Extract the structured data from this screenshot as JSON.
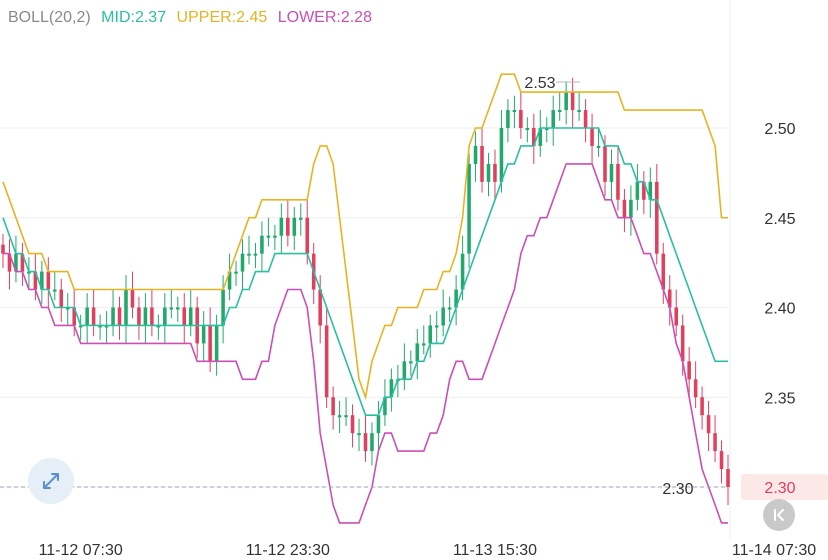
{
  "indicator": {
    "name": "BOLL(20,2)",
    "mid_label": "MID:2.37",
    "upper_label": "UPPER:2.45",
    "lower_label": "LOWER:2.28"
  },
  "colors": {
    "indicator_name": "#8a8a8a",
    "mid": "#2bbfa0",
    "upper": "#e6b422",
    "lower": "#cc4fb4",
    "up_candle": "#22a86b",
    "down_candle": "#e0405e",
    "grid": "#eeeeee",
    "axis_text": "#333333",
    "price_line": "#9aa5b8",
    "price_tag_bg": "#fde8e8",
    "price_tag_text": "#e0405e"
  },
  "icons": {
    "expand": "expand-arrows-icon",
    "back": "chevron-left-to-end-icon"
  },
  "chart_data": {
    "type": "candlestick",
    "title": "",
    "xlabel": "",
    "ylabel": "",
    "ylim": [
      2.28,
      2.52
    ],
    "y_ticks": [
      "2.50",
      "2.45",
      "2.40",
      "2.35",
      "2.30"
    ],
    "x_ticks": [
      {
        "label": "11-12 07:30",
        "index": 12
      },
      {
        "label": "11-12 23:30",
        "index": 44
      },
      {
        "label": "11-13 15:30",
        "index": 76
      },
      {
        "label": "11-14 07:30",
        "index": 108
      }
    ],
    "last_price": "2.30",
    "high_label": "2.53",
    "annotation_price": "2.30",
    "close": [
      2.43,
      2.42,
      2.43,
      2.42,
      2.42,
      2.41,
      2.42,
      2.41,
      2.41,
      2.4,
      2.4,
      2.39,
      2.39,
      2.4,
      2.39,
      2.39,
      2.39,
      2.4,
      2.39,
      2.41,
      2.4,
      2.39,
      2.4,
      2.39,
      2.39,
      2.4,
      2.4,
      2.4,
      2.39,
      2.4,
      2.38,
      2.39,
      2.37,
      2.39,
      2.41,
      2.42,
      2.42,
      2.43,
      2.43,
      2.43,
      2.44,
      2.44,
      2.44,
      2.45,
      2.44,
      2.45,
      2.45,
      2.43,
      2.41,
      2.39,
      2.35,
      2.34,
      2.34,
      2.34,
      2.33,
      2.33,
      2.32,
      2.33,
      2.34,
      2.35,
      2.36,
      2.36,
      2.37,
      2.37,
      2.38,
      2.38,
      2.39,
      2.39,
      2.4,
      2.4,
      2.41,
      2.43,
      2.48,
      2.49,
      2.47,
      2.48,
      2.47,
      2.5,
      2.51,
      2.51,
      2.5,
      2.5,
      2.49,
      2.5,
      2.5,
      2.51,
      2.51,
      2.52,
      2.51,
      2.51,
      2.5,
      2.49,
      2.49,
      2.47,
      2.48,
      2.46,
      2.45,
      2.46,
      2.47,
      2.46,
      2.47,
      2.43,
      2.41,
      2.4,
      2.39,
      2.37,
      2.36,
      2.35,
      2.34,
      2.33,
      2.32,
      2.31,
      2.3
    ],
    "upper": [
      2.47,
      2.46,
      2.45,
      2.44,
      2.43,
      2.43,
      2.43,
      2.42,
      2.42,
      2.42,
      2.42,
      2.41,
      2.41,
      2.41,
      2.41,
      2.41,
      2.41,
      2.41,
      2.41,
      2.41,
      2.41,
      2.41,
      2.41,
      2.41,
      2.41,
      2.41,
      2.41,
      2.41,
      2.41,
      2.41,
      2.41,
      2.41,
      2.41,
      2.41,
      2.41,
      2.42,
      2.43,
      2.44,
      2.45,
      2.45,
      2.46,
      2.46,
      2.46,
      2.46,
      2.46,
      2.46,
      2.46,
      2.46,
      2.48,
      2.49,
      2.49,
      2.48,
      2.45,
      2.42,
      2.39,
      2.36,
      2.35,
      2.37,
      2.38,
      2.39,
      2.39,
      2.4,
      2.4,
      2.4,
      2.4,
      2.41,
      2.41,
      2.41,
      2.42,
      2.42,
      2.43,
      2.45,
      2.49,
      2.5,
      2.5,
      2.51,
      2.52,
      2.53,
      2.53,
      2.53,
      2.52,
      2.52,
      2.52,
      2.52,
      2.52,
      2.52,
      2.52,
      2.52,
      2.52,
      2.52,
      2.52,
      2.52,
      2.52,
      2.52,
      2.52,
      2.52,
      2.51,
      2.51,
      2.51,
      2.51,
      2.51,
      2.51,
      2.51,
      2.51,
      2.51,
      2.51,
      2.51,
      2.51,
      2.51,
      2.5,
      2.49,
      2.45,
      2.45
    ],
    "mid": [
      2.45,
      2.44,
      2.43,
      2.43,
      2.42,
      2.42,
      2.41,
      2.41,
      2.4,
      2.4,
      2.4,
      2.4,
      2.39,
      2.39,
      2.39,
      2.39,
      2.39,
      2.39,
      2.39,
      2.39,
      2.39,
      2.39,
      2.39,
      2.39,
      2.39,
      2.39,
      2.39,
      2.39,
      2.39,
      2.39,
      2.39,
      2.39,
      2.39,
      2.39,
      2.39,
      2.4,
      2.4,
      2.41,
      2.41,
      2.42,
      2.42,
      2.42,
      2.43,
      2.43,
      2.43,
      2.43,
      2.43,
      2.43,
      2.42,
      2.41,
      2.4,
      2.39,
      2.38,
      2.37,
      2.36,
      2.35,
      2.34,
      2.34,
      2.34,
      2.35,
      2.35,
      2.36,
      2.36,
      2.36,
      2.37,
      2.37,
      2.38,
      2.38,
      2.38,
      2.39,
      2.4,
      2.41,
      2.42,
      2.43,
      2.44,
      2.45,
      2.46,
      2.47,
      2.48,
      2.48,
      2.49,
      2.49,
      2.49,
      2.5,
      2.5,
      2.5,
      2.5,
      2.5,
      2.5,
      2.5,
      2.5,
      2.5,
      2.5,
      2.49,
      2.49,
      2.49,
      2.48,
      2.48,
      2.47,
      2.47,
      2.46,
      2.46,
      2.45,
      2.44,
      2.43,
      2.42,
      2.41,
      2.4,
      2.39,
      2.38,
      2.37,
      2.37,
      2.37
    ],
    "lower": [
      2.43,
      2.43,
      2.42,
      2.42,
      2.41,
      2.41,
      2.4,
      2.4,
      2.39,
      2.39,
      2.39,
      2.39,
      2.38,
      2.38,
      2.38,
      2.38,
      2.38,
      2.38,
      2.38,
      2.38,
      2.38,
      2.38,
      2.38,
      2.38,
      2.38,
      2.38,
      2.38,
      2.38,
      2.38,
      2.38,
      2.37,
      2.37,
      2.37,
      2.37,
      2.37,
      2.37,
      2.37,
      2.36,
      2.36,
      2.36,
      2.37,
      2.37,
      2.39,
      2.4,
      2.41,
      2.41,
      2.41,
      2.4,
      2.37,
      2.33,
      2.31,
      2.29,
      2.28,
      2.28,
      2.28,
      2.28,
      2.29,
      2.3,
      2.32,
      2.33,
      2.33,
      2.32,
      2.32,
      2.32,
      2.32,
      2.32,
      2.33,
      2.33,
      2.34,
      2.36,
      2.37,
      2.37,
      2.36,
      2.36,
      2.36,
      2.37,
      2.38,
      2.39,
      2.4,
      2.41,
      2.43,
      2.44,
      2.44,
      2.45,
      2.45,
      2.46,
      2.47,
      2.48,
      2.48,
      2.48,
      2.48,
      2.48,
      2.47,
      2.46,
      2.46,
      2.45,
      2.45,
      2.45,
      2.44,
      2.43,
      2.43,
      2.42,
      2.41,
      2.4,
      2.38,
      2.37,
      2.35,
      2.33,
      2.31,
      2.3,
      2.29,
      2.28,
      2.28
    ]
  }
}
